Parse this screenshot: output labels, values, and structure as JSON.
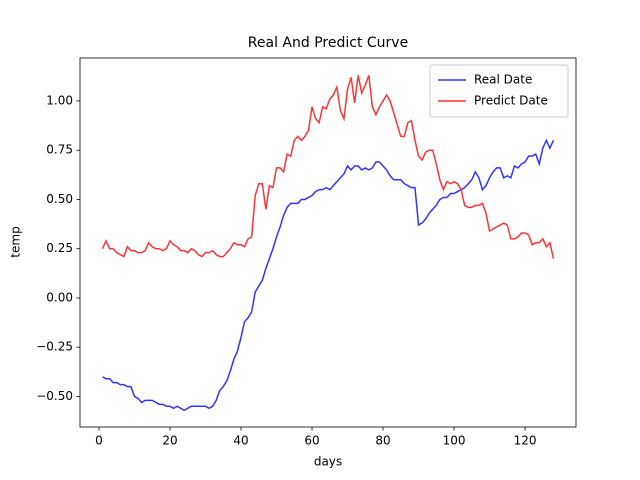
{
  "chart_data": {
    "type": "line",
    "title": "Real And Predict Curve",
    "x_label": "days",
    "y_label": "temp",
    "x": [
      1,
      2,
      3,
      4,
      5,
      6,
      7,
      8,
      9,
      10,
      11,
      12,
      13,
      14,
      15,
      16,
      17,
      18,
      19,
      20,
      21,
      22,
      23,
      24,
      25,
      26,
      27,
      28,
      29,
      30,
      31,
      32,
      33,
      34,
      35,
      36,
      37,
      38,
      39,
      40,
      41,
      42,
      43,
      44,
      45,
      46,
      47,
      48,
      49,
      50,
      51,
      52,
      53,
      54,
      55,
      56,
      57,
      58,
      59,
      60,
      61,
      62,
      63,
      64,
      65,
      66,
      67,
      68,
      69,
      70,
      71,
      72,
      73,
      74,
      75,
      76,
      77,
      78,
      79,
      80,
      81,
      82,
      83,
      84,
      85,
      86,
      87,
      88,
      89,
      90,
      91,
      92,
      93,
      94,
      95,
      96,
      97,
      98,
      99,
      100,
      101,
      102,
      103,
      104,
      105,
      106,
      107,
      108,
      109,
      110,
      111,
      112,
      113,
      114,
      115,
      116,
      117,
      118,
      119,
      120,
      121,
      122,
      123,
      124,
      125,
      126,
      127,
      128
    ],
    "series": [
      {
        "name": "Real Date",
        "color": "#3333ff",
        "values": [
          -0.4,
          -0.41,
          -0.41,
          -0.43,
          -0.43,
          -0.44,
          -0.44,
          -0.45,
          -0.45,
          -0.5,
          -0.51,
          -0.53,
          -0.52,
          -0.52,
          -0.52,
          -0.53,
          -0.54,
          -0.54,
          -0.55,
          -0.55,
          -0.56,
          -0.55,
          -0.56,
          -0.57,
          -0.56,
          -0.55,
          -0.55,
          -0.55,
          -0.55,
          -0.55,
          -0.56,
          -0.55,
          -0.52,
          -0.47,
          -0.45,
          -0.42,
          -0.37,
          -0.31,
          -0.27,
          -0.2,
          -0.12,
          -0.1,
          -0.07,
          0.03,
          0.06,
          0.09,
          0.15,
          0.2,
          0.25,
          0.31,
          0.36,
          0.42,
          0.46,
          0.48,
          0.48,
          0.48,
          0.5,
          0.5,
          0.51,
          0.52,
          0.54,
          0.55,
          0.55,
          0.56,
          0.55,
          0.57,
          0.59,
          0.61,
          0.63,
          0.67,
          0.65,
          0.67,
          0.67,
          0.65,
          0.66,
          0.65,
          0.66,
          0.69,
          0.69,
          0.67,
          0.65,
          0.62,
          0.6,
          0.6,
          0.6,
          0.58,
          0.57,
          0.56,
          0.56,
          0.37,
          0.38,
          0.4,
          0.43,
          0.45,
          0.47,
          0.5,
          0.51,
          0.51,
          0.53,
          0.53,
          0.54,
          0.55,
          0.56,
          0.58,
          0.6,
          0.64,
          0.61,
          0.55,
          0.57,
          0.61,
          0.64,
          0.66,
          0.66,
          0.61,
          0.62,
          0.61,
          0.67,
          0.66,
          0.68,
          0.69,
          0.72,
          0.72,
          0.73,
          0.68,
          0.76,
          0.8,
          0.76,
          0.8
        ]
      },
      {
        "name": "Predict Date",
        "color": "#ff3333",
        "values": [
          0.25,
          0.29,
          0.25,
          0.25,
          0.23,
          0.22,
          0.21,
          0.26,
          0.24,
          0.24,
          0.23,
          0.23,
          0.24,
          0.28,
          0.26,
          0.25,
          0.25,
          0.24,
          0.25,
          0.29,
          0.27,
          0.26,
          0.24,
          0.24,
          0.23,
          0.25,
          0.24,
          0.22,
          0.21,
          0.23,
          0.23,
          0.24,
          0.22,
          0.21,
          0.21,
          0.23,
          0.25,
          0.28,
          0.27,
          0.27,
          0.26,
          0.3,
          0.31,
          0.52,
          0.58,
          0.58,
          0.45,
          0.57,
          0.56,
          0.66,
          0.66,
          0.64,
          0.73,
          0.72,
          0.8,
          0.82,
          0.8,
          0.82,
          0.85,
          0.97,
          0.91,
          0.89,
          0.97,
          0.96,
          1.01,
          1.03,
          1.07,
          0.95,
          0.91,
          1.06,
          1.12,
          0.99,
          1.13,
          1.04,
          1.08,
          1.13,
          0.97,
          0.93,
          0.97,
          1.0,
          1.03,
          1.0,
          0.94,
          0.88,
          0.82,
          0.82,
          0.89,
          0.9,
          0.8,
          0.72,
          0.7,
          0.74,
          0.75,
          0.75,
          0.68,
          0.6,
          0.55,
          0.59,
          0.58,
          0.59,
          0.58,
          0.55,
          0.47,
          0.46,
          0.46,
          0.47,
          0.47,
          0.48,
          0.43,
          0.34,
          0.35,
          0.36,
          0.37,
          0.38,
          0.37,
          0.3,
          0.3,
          0.31,
          0.33,
          0.33,
          0.32,
          0.27,
          0.28,
          0.28,
          0.3,
          0.26,
          0.28,
          0.2
        ]
      }
    ],
    "xlim": [
      -5.35,
      134.35
    ],
    "ylim": [
      -0.655,
      1.218
    ],
    "xticks": [
      0,
      20,
      40,
      60,
      80,
      100,
      120
    ],
    "yticks": [
      {
        "value": -0.5,
        "label": "−0.50"
      },
      {
        "value": -0.25,
        "label": "−0.25"
      },
      {
        "value": 0,
        "label": "0.00"
      },
      {
        "value": 0.25,
        "label": "0.25"
      },
      {
        "value": 0.5,
        "label": "0.50"
      },
      {
        "value": 0.75,
        "label": "0.75"
      },
      {
        "value": 1,
        "label": "1.00"
      }
    ],
    "grid": false,
    "legend": "upper right"
  }
}
